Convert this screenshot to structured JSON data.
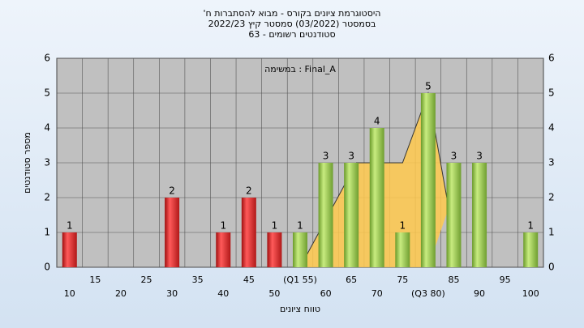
{
  "chart_data": {
    "type": "bar",
    "title": [
      "'היסטוגרמת ציונים בקורס - מבוא להסתברות ח",
      "בסמסטר  (03/2022)  סמסטר קיץ 2022/23",
      "סטודנטים רשומים - 63"
    ],
    "annotation": "במשימה : Final_A",
    "x_label": "טווח ציונים",
    "y_label": "מספר סטודנטים",
    "categories": [
      "10",
      "15",
      "20",
      "25",
      "30",
      "35",
      "40",
      "45",
      "50",
      "(Q1 55)",
      "60",
      "65",
      "70",
      "75",
      "(Q3 80)",
      "85",
      "90",
      "95",
      "100"
    ],
    "values": [
      1,
      0,
      0,
      0,
      2,
      0,
      1,
      2,
      1,
      1,
      3,
      3,
      4,
      1,
      5,
      3,
      3,
      0,
      1
    ],
    "value_labels": [
      "1",
      null,
      null,
      null,
      "2",
      null,
      "1",
      "2",
      "1",
      "1",
      "3",
      "3",
      "4",
      "1",
      "5",
      "3",
      "3",
      null,
      "1"
    ],
    "colors": [
      "red",
      "red",
      "red",
      "red",
      "red",
      "red",
      "red",
      "red",
      "red",
      "green",
      "green",
      "green",
      "green",
      "green",
      "green",
      "green",
      "green",
      "green",
      "green"
    ],
    "overlay": {
      "x": [
        55,
        66,
        75,
        80,
        84
      ],
      "y": [
        0,
        3,
        3,
        5,
        1.7
      ],
      "color": "#ffc94d"
    },
    "xlim": [
      7.5,
      102.5
    ],
    "ylim": [
      0,
      6
    ],
    "yticks": [
      0,
      1,
      2,
      3,
      4,
      5,
      6
    ],
    "grid": true
  }
}
